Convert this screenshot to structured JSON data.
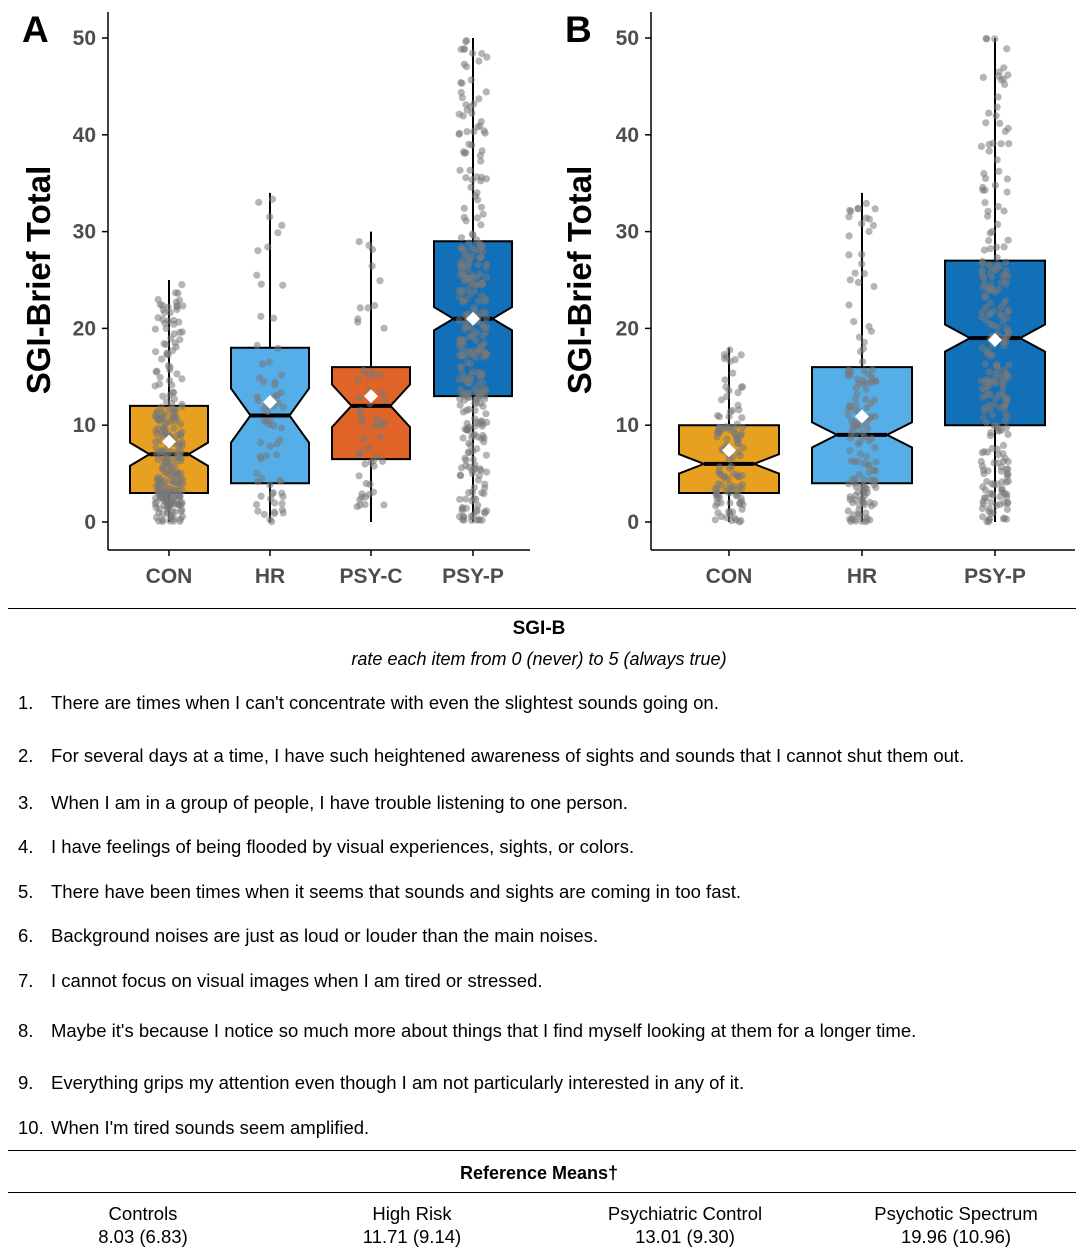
{
  "chart_data": [
    {
      "type": "box",
      "panel_label": "A",
      "ylabel": "SGI-Brief Total",
      "ylim": [
        -2,
        52
      ],
      "y_ticks": [
        0,
        10,
        20,
        30,
        40,
        50
      ],
      "grid": false,
      "notched": true,
      "categories": [
        "CON",
        "HR",
        "PSY-C",
        "PSY-P"
      ],
      "colors": [
        "#e8a020",
        "#56aee8",
        "#e06428",
        "#1170b8"
      ],
      "boxes": [
        {
          "category": "CON",
          "q1": 3,
          "median": 7,
          "q3": 12,
          "whisker_low": 0,
          "whisker_high": 25,
          "mean": 8.3,
          "notch_low": 5.8,
          "notch_high": 8.2
        },
        {
          "category": "HR",
          "q1": 4,
          "median": 11,
          "q3": 18,
          "whisker_low": 0,
          "whisker_high": 34,
          "mean": 12.4,
          "notch_low": 8.2,
          "notch_high": 13.8
        },
        {
          "category": "PSY-C",
          "q1": 6.5,
          "median": 12,
          "q3": 16,
          "whisker_low": 0,
          "whisker_high": 30,
          "mean": 13.0,
          "notch_low": 9.8,
          "notch_high": 14.2
        },
        {
          "category": "PSY-P",
          "q1": 13,
          "median": 21,
          "q3": 29,
          "whisker_low": 0,
          "whisker_high": 50,
          "mean": 21.0,
          "notch_low": 19.8,
          "notch_high": 22.2
        }
      ]
    },
    {
      "type": "box",
      "panel_label": "B",
      "ylabel": "SGI-Brief Total",
      "ylim": [
        -2,
        52
      ],
      "y_ticks": [
        0,
        10,
        20,
        30,
        40,
        50
      ],
      "grid": false,
      "notched": true,
      "categories": [
        "CON",
        "HR",
        "PSY-P"
      ],
      "colors": [
        "#e8a020",
        "#56aee8",
        "#1170b8"
      ],
      "boxes": [
        {
          "category": "CON",
          "q1": 3,
          "median": 6,
          "q3": 10,
          "whisker_low": 0,
          "whisker_high": 18,
          "mean": 7.4,
          "notch_low": 5.0,
          "notch_high": 7.0
        },
        {
          "category": "HR",
          "q1": 4,
          "median": 9,
          "q3": 16,
          "whisker_low": 0,
          "whisker_high": 34,
          "mean": 10.9,
          "notch_low": 7.7,
          "notch_high": 10.3
        },
        {
          "category": "PSY-P",
          "q1": 10,
          "median": 19,
          "q3": 27,
          "whisker_low": 0,
          "whisker_high": 50,
          "mean": 18.8,
          "notch_low": 17.6,
          "notch_high": 20.4
        }
      ]
    }
  ],
  "questionnaire": {
    "title": "SGI-B",
    "subtitle": "rate each item from 0 (never) to 5 (always true)",
    "items": [
      {
        "number": "1.",
        "text": "There are times when I can't concentrate with even the slightest sounds going on."
      },
      {
        "number": "2.",
        "text": "For several days at a time, I have such heightened awareness of sights and sounds that I cannot shut them out."
      },
      {
        "number": "3.",
        "text": "When I am in a group of people, I have trouble listening to one person."
      },
      {
        "number": "4.",
        "text": "I have feelings of being flooded by visual experiences, sights, or colors."
      },
      {
        "number": "5.",
        "text": "There have been times when it seems that sounds and sights are coming in too fast."
      },
      {
        "number": "6.",
        "text": "Background noises are just as loud or louder than the main noises."
      },
      {
        "number": "7.",
        "text": "I cannot focus on visual images when I am tired or stressed."
      },
      {
        "number": "8.",
        "text": "Maybe it's because I notice so much more about things that I find myself looking at them for a longer time."
      },
      {
        "number": "9.",
        "text": "Everything grips my attention even though I am not particularly interested in any of it."
      },
      {
        "number": "10.",
        "text": "When I'm tired sounds seem amplified."
      }
    ]
  },
  "reference_means": {
    "title": "Reference Means†",
    "columns": [
      {
        "group": "Controls",
        "value": "8.03 (6.83)"
      },
      {
        "group": "High Risk",
        "value": "11.71 (9.14)"
      },
      {
        "group": "Psychiatric Control",
        "value": "13.01 (9.30)"
      },
      {
        "group": "Psychotic Spectrum",
        "value": "19.96 (10.96)"
      }
    ]
  }
}
